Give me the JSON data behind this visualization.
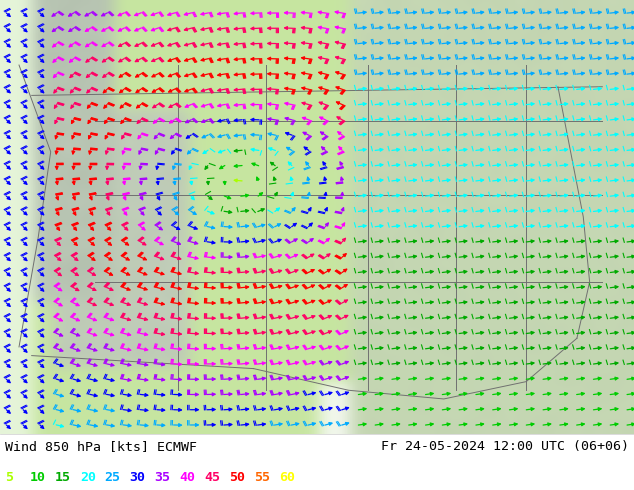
{
  "title_left": "Wind 850 hPa [kts] ECMWF",
  "title_right": "Fr 24-05-2024 12:00 UTC (06+06)",
  "legend_values": [
    "5",
    "10",
    "15",
    "20",
    "25",
    "30",
    "35",
    "40",
    "45",
    "50",
    "55",
    "60"
  ],
  "legend_colors": [
    "#aaff00",
    "#00cc00",
    "#00aa00",
    "#00ffff",
    "#00aaff",
    "#0000ff",
    "#aa00ff",
    "#ff00ff",
    "#ff0066",
    "#ff0000",
    "#ff6600",
    "#ffff00"
  ],
  "fig_width": 6.34,
  "fig_height": 4.9,
  "dpi": 100,
  "map_green_light": "#c8e6a0",
  "map_green_mid": "#a8d878",
  "map_green_dark": "#80b858",
  "mountain_gray": "#b0b8a0",
  "ocean_white": "#e8f0e8",
  "bottom_bar_bg": "#ffffff",
  "title_fontsize": 9.5,
  "legend_fontsize": 9.5
}
